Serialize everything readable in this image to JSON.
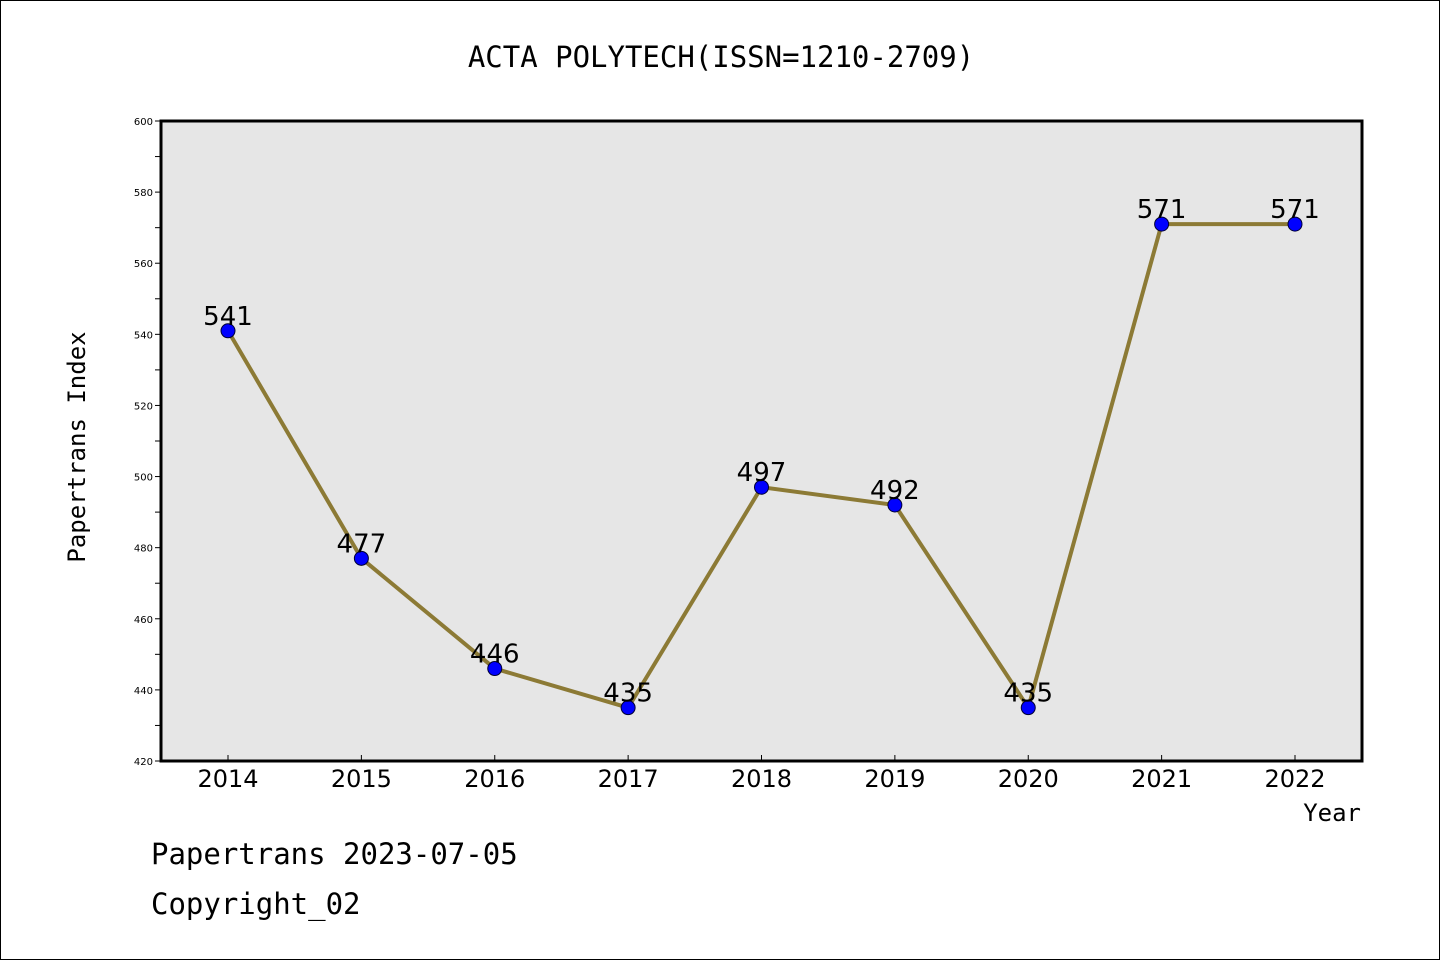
{
  "chart_data": {
    "type": "line",
    "title": "ACTA POLYTECH(ISSN=1210-2709)",
    "xlabel": "Year",
    "ylabel": "Papertrans Index",
    "x": [
      "2014",
      "2015",
      "2016",
      "2017",
      "2018",
      "2019",
      "2020",
      "2021",
      "2022"
    ],
    "series": [
      {
        "values": [
          541,
          477,
          446,
          435,
          497,
          492,
          435,
          571,
          571
        ]
      }
    ],
    "data_labels": [
      "541",
      "477",
      "446",
      "435",
      "497",
      "492",
      "435",
      "571",
      "571"
    ],
    "ylim": [
      420,
      600
    ],
    "yticks": [
      420,
      440,
      460,
      480,
      500,
      520,
      540,
      560,
      580,
      600
    ],
    "ytick_labels": [
      "420",
      "440",
      "460",
      "480",
      "500",
      "520",
      "540",
      "560",
      "580",
      "600"
    ],
    "grid": false,
    "legend": "none",
    "colors": {
      "line": "#8c7a35",
      "marker": "#0000ff",
      "plot_background": "#e6e6e6"
    }
  },
  "footer": {
    "line1": "Papertrans 2023-07-05",
    "line2": "Copyright_02"
  }
}
